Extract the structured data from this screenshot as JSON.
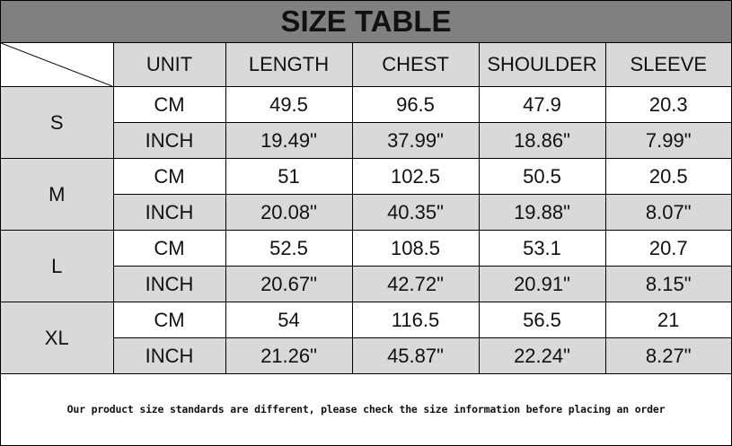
{
  "title": "SIZE TABLE",
  "headers": [
    "UNIT",
    "LENGTH",
    "CHEST",
    "SHOULDER",
    "SLEEVE"
  ],
  "sizes": [
    {
      "size": "S",
      "rows": [
        [
          "CM",
          "49.5",
          "96.5",
          "47.9",
          "20.3"
        ],
        [
          "INCH",
          "19.49\"",
          "37.99\"",
          "18.86\"",
          "7.99\""
        ]
      ]
    },
    {
      "size": "M",
      "rows": [
        [
          "CM",
          "51",
          "102.5",
          "50.5",
          "20.5"
        ],
        [
          "INCH",
          "20.08\"",
          "40.35\"",
          "19.88\"",
          "8.07\""
        ]
      ]
    },
    {
      "size": "L",
      "rows": [
        [
          "CM",
          "52.5",
          "108.5",
          "53.1",
          "20.7"
        ],
        [
          "INCH",
          "20.67\"",
          "42.72\"",
          "20.91\"",
          "8.15\""
        ]
      ]
    },
    {
      "size": "XL",
      "rows": [
        [
          "CM",
          "54",
          "116.5",
          "56.5",
          "21"
        ],
        [
          "INCH",
          "21.26\"",
          "45.87\"",
          "22.24\"",
          "8.27\""
        ]
      ]
    }
  ],
  "note": "Our product size standards are different, please check the size information before placing an order",
  "colors": {
    "title_bg": "#808080",
    "cell_gray": "#d9d9d9"
  }
}
